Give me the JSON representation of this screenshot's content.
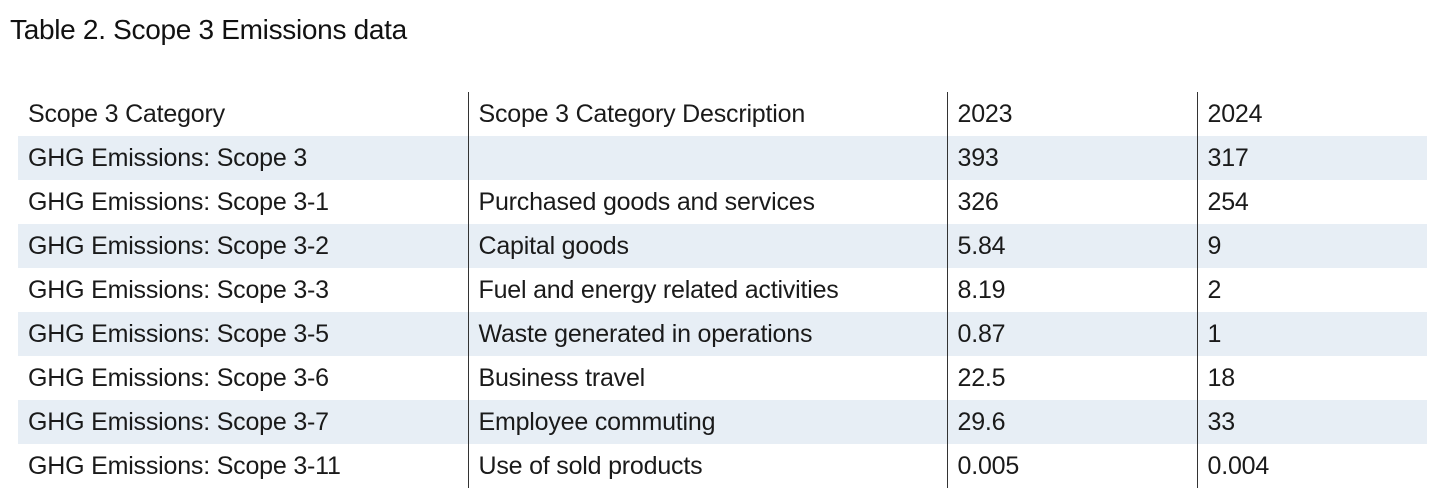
{
  "title": "Table 2. Scope 3 Emissions data",
  "table": {
    "headers": [
      "Scope 3 Category",
      "Scope 3 Category Description",
      "2023",
      "2024"
    ],
    "rows": [
      {
        "category": "GHG Emissions: Scope 3",
        "description": "",
        "y2023": "393",
        "y2024": "317"
      },
      {
        "category": "GHG Emissions: Scope 3-1",
        "description": "Purchased goods and services",
        "y2023": "326",
        "y2024": "254"
      },
      {
        "category": "GHG Emissions: Scope 3-2",
        "description": "Capital goods",
        "y2023": "5.84",
        "y2024": "9"
      },
      {
        "category": "GHG Emissions: Scope 3-3",
        "description": "Fuel and energy related activities",
        "y2023": "8.19",
        "y2024": "2"
      },
      {
        "category": "GHG Emissions: Scope 3-5",
        "description": "Waste generated in operations",
        "y2023": "0.87",
        "y2024": "1"
      },
      {
        "category": "GHG Emissions: Scope 3-6",
        "description": "Business travel",
        "y2023": "22.5",
        "y2024": "18"
      },
      {
        "category": "GHG Emissions: Scope 3-7",
        "description": "Employee commuting",
        "y2023": "29.6",
        "y2024": "33"
      },
      {
        "category": "GHG Emissions: Scope 3-11",
        "description": "Use of sold products",
        "y2023": "0.005",
        "y2024": "0.004"
      }
    ],
    "shade_color": "#e7eef5",
    "separator_color": "#333333"
  }
}
